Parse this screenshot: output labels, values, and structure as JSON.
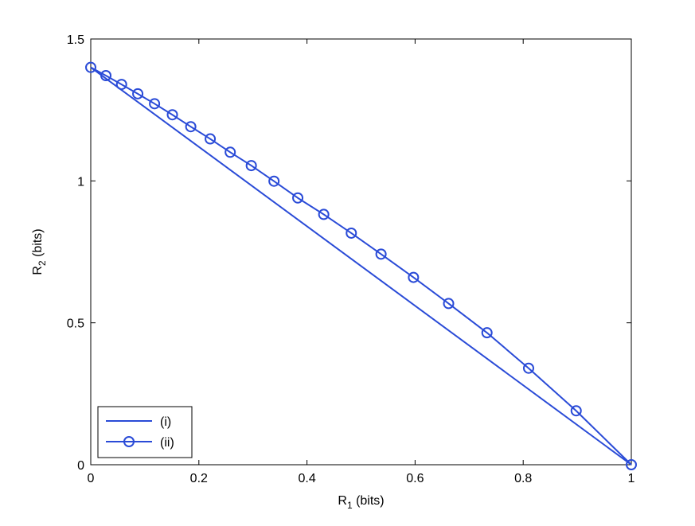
{
  "chart_data": {
    "type": "line",
    "title": "",
    "xlabel": {
      "base": "R",
      "sub": "1",
      "rest": " (bits)"
    },
    "ylabel": {
      "base": "R",
      "sub": "2",
      "rest": " (bits)"
    },
    "xlim": [
      0,
      1
    ],
    "ylim": [
      0,
      1.5
    ],
    "xticks": [
      0,
      0.2,
      0.4,
      0.6,
      0.8,
      1
    ],
    "xtick_labels": [
      "0",
      "0.2",
      "0.4",
      "0.6",
      "0.8",
      "1"
    ],
    "yticks": [
      0,
      0.5,
      1,
      1.5
    ],
    "ytick_labels": [
      "0",
      "0.5",
      "1",
      "1.5"
    ],
    "grid": false,
    "legend_position": "bottom-left",
    "colors": {
      "series": "#2a4bd7",
      "axis": "#000000",
      "background": "#ffffff"
    },
    "series": [
      {
        "name": "(i)",
        "marker": "none",
        "x": [
          0,
          1
        ],
        "y": [
          1.4,
          0
        ]
      },
      {
        "name": "(ii)",
        "marker": "circle",
        "x": [
          0,
          0.028,
          0.057,
          0.087,
          0.118,
          0.151,
          0.185,
          0.221,
          0.258,
          0.297,
          0.339,
          0.383,
          0.431,
          0.482,
          0.537,
          0.597,
          0.662,
          0.733,
          0.81,
          0.898,
          1
        ],
        "y": [
          1.4,
          1.371,
          1.34,
          1.307,
          1.272,
          1.233,
          1.191,
          1.148,
          1.101,
          1.054,
          0.999,
          0.94,
          0.882,
          0.816,
          0.742,
          0.66,
          0.568,
          0.465,
          0.34,
          0.19,
          0
        ]
      }
    ]
  }
}
